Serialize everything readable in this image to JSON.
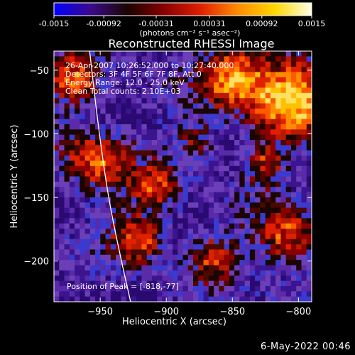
{
  "colorbar": {
    "ticks": [
      {
        "value": -0.0015,
        "label": "-0.0015"
      },
      {
        "value": -0.00092,
        "label": "-0.00092"
      },
      {
        "value": -0.00031,
        "label": "-0.00031"
      },
      {
        "value": 0.00031,
        "label": "0.00031"
      },
      {
        "value": 0.00092,
        "label": "0.00092"
      },
      {
        "value": 0.0015,
        "label": "0.0015"
      }
    ],
    "range": [
      -0.0015,
      0.0015
    ],
    "unit_label": "(photons cm⁻² s⁻¹ asec⁻²)",
    "colors": [
      "#0000ff",
      "#3b0a8c",
      "#1a0500",
      "#8a0000",
      "#e02000",
      "#ff8c00",
      "#ffd700",
      "#ffffe8"
    ]
  },
  "chart_data": {
    "type": "heatmap",
    "title": "Reconstructed RHESSI Image",
    "xlabel": "Heliocentric X (arcsec)",
    "ylabel": "Heliocentric Y (arcsec)",
    "xlim": [
      -985,
      -790
    ],
    "ylim": [
      -232,
      -35
    ],
    "x_ticks": [
      -950,
      -900,
      -850,
      -800
    ],
    "x_tick_labels": [
      "−950",
      "−900",
      "−850",
      "−800"
    ],
    "y_ticks": [
      -50,
      -100,
      -150,
      -200
    ],
    "y_tick_labels": [
      "−50",
      "−100",
      "−150",
      "−200"
    ],
    "annotations": [
      "26-Apr-2007 10:26:52.000 to 10:27:40.000",
      "Detectors: 3F 4F 5F 6F 7F 8F, Att 0",
      "Energy Range: 12.0 - 25.0 keV",
      "Clean   Total counts: 2.10E+03"
    ],
    "peak_label": "Position of Peak = [-818,-77]",
    "peak": {
      "x": -818,
      "y": -77
    },
    "limb_points": [
      [
        -958,
        -35
      ],
      [
        -952,
        -90
      ],
      [
        -944,
        -150
      ],
      [
        -934,
        -200
      ],
      [
        -927,
        -232
      ]
    ]
  },
  "footer": {
    "date": "6-May-2022 00:46"
  }
}
